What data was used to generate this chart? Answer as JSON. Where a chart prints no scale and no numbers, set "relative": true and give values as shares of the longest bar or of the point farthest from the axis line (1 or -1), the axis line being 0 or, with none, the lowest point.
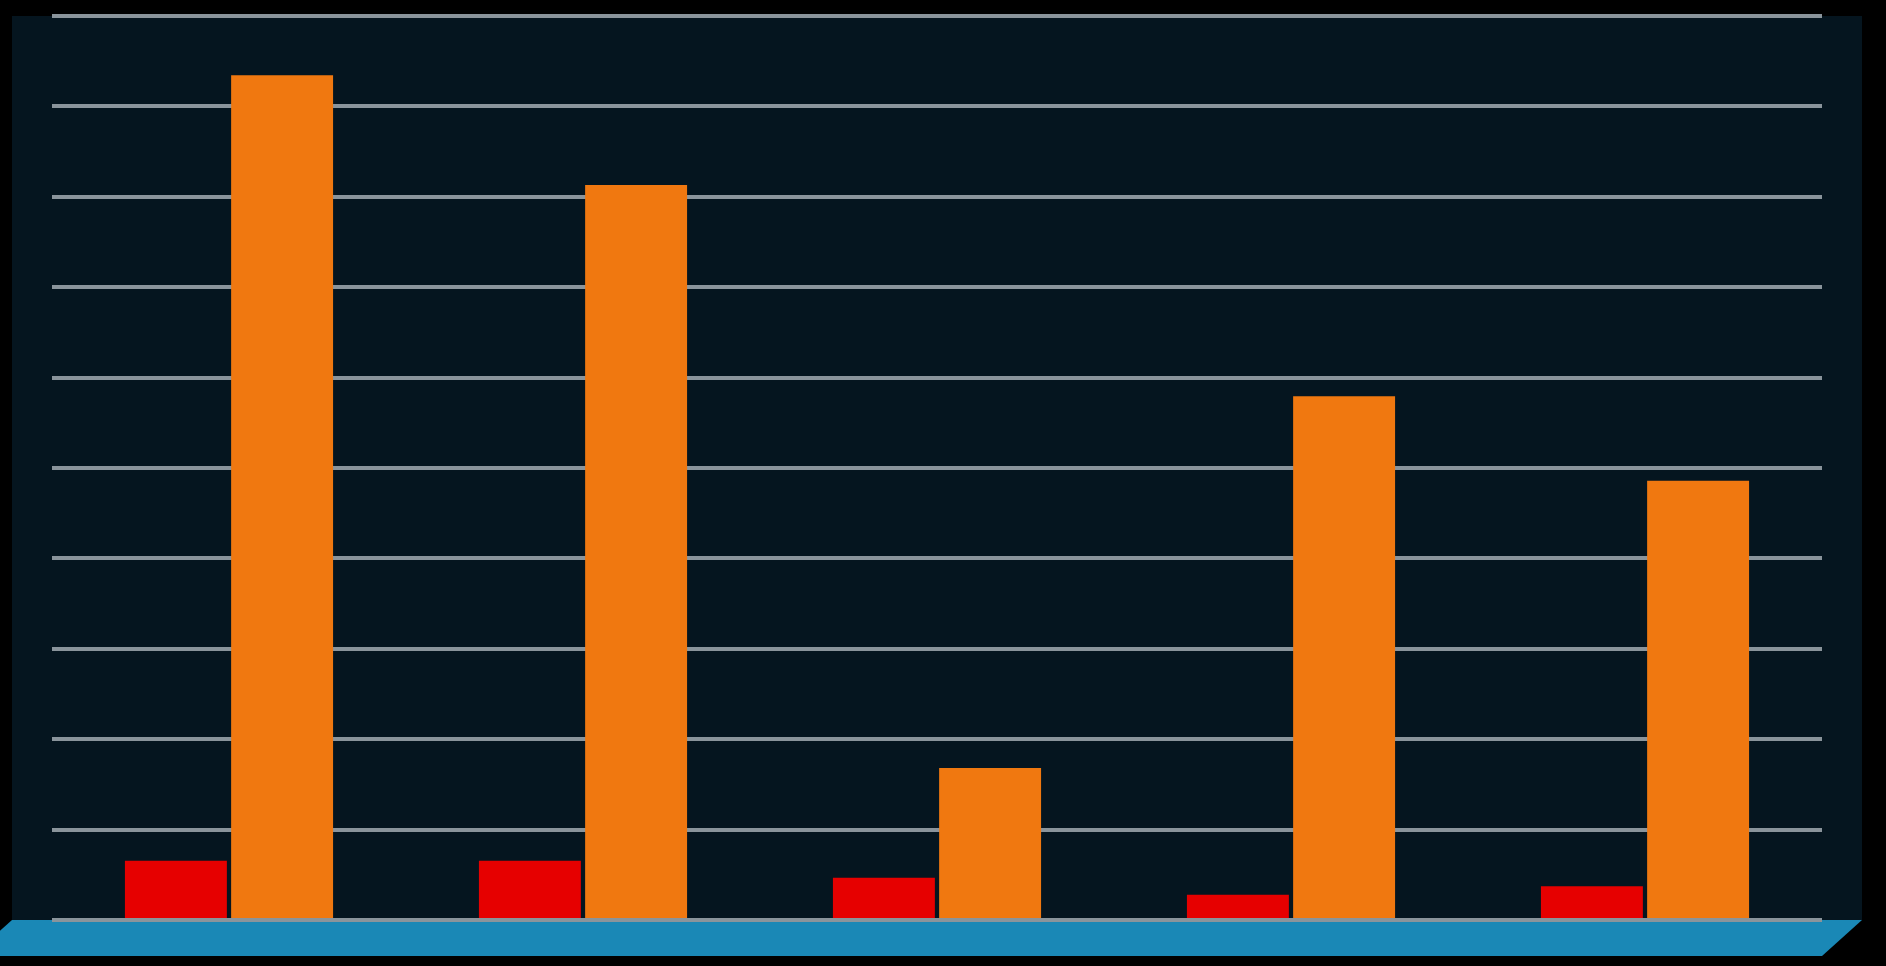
{
  "chart_data": {
    "type": "bar",
    "relative": true,
    "categories": [
      null,
      null,
      null,
      null,
      null
    ],
    "series": [
      {
        "color": "#e60000",
        "values": [
          0.07,
          0.07,
          0.05,
          0.03,
          0.04
        ]
      },
      {
        "color": "#f07810",
        "values": [
          1,
          0.87,
          0.18,
          0.62,
          0.52
        ]
      }
    ],
    "grid": "y",
    "tick_labels": false
  }
}
